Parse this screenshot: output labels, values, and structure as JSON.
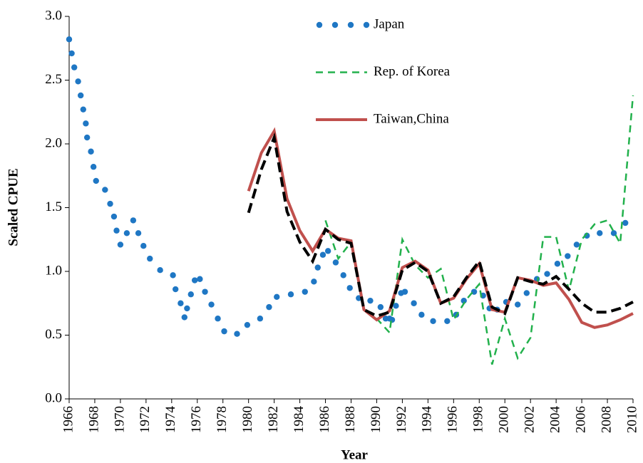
{
  "chart_data": {
    "type": "line",
    "y_label": "Scaled CPUE",
    "x_label": "Year",
    "xlim": [
      1966,
      2010
    ],
    "xticks": [
      1966,
      1968,
      1970,
      1972,
      1974,
      1976,
      1978,
      1980,
      1982,
      1984,
      1986,
      1988,
      1990,
      1992,
      1994,
      1996,
      1998,
      2000,
      2002,
      2004,
      2006,
      2008,
      2010
    ],
    "ylim": [
      0,
      3
    ],
    "yticks": [
      {
        "value": 0,
        "label": "0.0"
      },
      0.5,
      {
        "value": 1,
        "label": "1.0"
      },
      1.5,
      {
        "value": 2,
        "label": "2.0"
      },
      2.5,
      {
        "value": 3,
        "label": "3.0"
      }
    ],
    "legend": "top-center",
    "series": [
      {
        "name": "Japan",
        "color": "#1f77c4",
        "style": "dots",
        "x": [
          1966.0,
          1966.2,
          1966.4,
          1966.7,
          1966.9,
          1967.1,
          1967.3,
          1967.4,
          1967.7,
          1967.9,
          1968.1,
          1968.8,
          1969.2,
          1969.5,
          1969.7,
          1970.0,
          1970.5,
          1971.0,
          1971.4,
          1971.8,
          1972.3,
          1973.1,
          1974.1,
          1974.3,
          1974.7,
          1975.0,
          1975.2,
          1975.5,
          1975.8,
          1976.2,
          1976.6,
          1977.1,
          1977.6,
          1978.1,
          1979.1,
          1979.9,
          1980.9,
          1981.6,
          1982.2,
          1983.3,
          1984.4,
          1985.1,
          1985.4,
          1985.8,
          1986.2,
          1986.8,
          1987.4,
          1987.9,
          1988.6,
          1989.5,
          1990.3,
          1990.7,
          1991.0,
          1991.2,
          1991.5,
          1991.9,
          1992.2,
          1992.9,
          1993.5,
          1994.4,
          1995.5,
          1996.2,
          1996.8,
          1997.6,
          1998.3,
          1998.8,
          1999.4,
          2000.1,
          2001.0,
          2001.7,
          2002.5,
          2003.3,
          2004.1,
          2004.9,
          2005.6,
          2006.4,
          2007.4,
          2008.5,
          2009.4
        ],
        "values": [
          2.82,
          2.71,
          2.6,
          2.49,
          2.38,
          2.27,
          2.16,
          2.05,
          1.94,
          1.82,
          1.71,
          1.64,
          1.53,
          1.43,
          1.32,
          1.21,
          1.3,
          1.4,
          1.3,
          1.2,
          1.1,
          1.01,
          0.97,
          0.86,
          0.75,
          0.64,
          0.71,
          0.82,
          0.93,
          0.94,
          0.84,
          0.74,
          0.63,
          0.53,
          0.51,
          0.58,
          0.63,
          0.72,
          0.8,
          0.82,
          0.84,
          0.92,
          1.03,
          1.13,
          1.16,
          1.07,
          0.97,
          0.87,
          0.79,
          0.77,
          0.72,
          0.63,
          0.63,
          0.62,
          0.73,
          0.83,
          0.84,
          0.75,
          0.66,
          0.61,
          0.61,
          0.66,
          0.77,
          0.84,
          0.81,
          0.71,
          0.7,
          0.76,
          0.74,
          0.83,
          0.94,
          0.98,
          1.06,
          1.12,
          1.21,
          1.28,
          1.3,
          1.3,
          1.38
        ]
      },
      {
        "name": "Rep. of Korea",
        "color": "#22b14c",
        "style": "dash-thin",
        "x": [
          1986,
          1987,
          1988,
          1989,
          1990,
          1991,
          1992,
          1993,
          1994,
          1995,
          1996,
          1997,
          1998,
          1999,
          2000,
          2001,
          2002,
          2003,
          2004,
          2005,
          2006,
          2007,
          2008,
          2009,
          2010
        ],
        "values": [
          1.4,
          1.1,
          1.23,
          0.7,
          0.63,
          0.52,
          1.25,
          1.05,
          0.95,
          1.02,
          0.62,
          0.78,
          0.9,
          0.27,
          0.63,
          0.32,
          0.48,
          1.27,
          1.27,
          0.85,
          1.25,
          1.37,
          1.4,
          1.22,
          2.38
        ]
      },
      {
        "name": "Taiwan,China",
        "color": "#c0504d",
        "style": "solid",
        "x": [
          1980,
          1981,
          1982,
          1983,
          1984,
          1985,
          1986,
          1987,
          1988,
          1989,
          1990,
          1991,
          1992,
          1993,
          1994,
          1995,
          1996,
          1997,
          1998,
          1999,
          2000,
          2001,
          2002,
          2003,
          2004,
          2005,
          2006,
          2007,
          2008,
          2009,
          2010
        ],
        "values": [
          1.63,
          1.93,
          2.1,
          1.57,
          1.32,
          1.16,
          1.33,
          1.26,
          1.24,
          0.7,
          0.62,
          0.69,
          1.03,
          1.08,
          1.01,
          0.75,
          0.79,
          0.94,
          1.06,
          0.7,
          0.68,
          0.95,
          0.93,
          0.89,
          0.91,
          0.78,
          0.6,
          0.56,
          0.58,
          0.62,
          0.67
        ]
      },
      {
        "color": "#000000",
        "style": "dash-thick",
        "x": [
          1980,
          1981,
          1982,
          1983,
          1984,
          1985,
          1986,
          1987,
          1988,
          1989,
          1990,
          1991,
          1992,
          1993,
          1994,
          1995,
          1996,
          1997,
          1998,
          1999,
          2000,
          2001,
          2002,
          2003,
          2004,
          2005,
          2006,
          2007,
          2008,
          2009,
          2010
        ],
        "values": [
          1.46,
          1.8,
          2.05,
          1.47,
          1.23,
          1.08,
          1.33,
          1.25,
          1.22,
          0.7,
          0.65,
          0.68,
          1.01,
          1.07,
          1.0,
          0.75,
          0.8,
          0.95,
          1.08,
          0.72,
          0.67,
          0.95,
          0.92,
          0.9,
          0.96,
          0.86,
          0.75,
          0.68,
          0.68,
          0.71,
          0.76
        ]
      }
    ]
  }
}
